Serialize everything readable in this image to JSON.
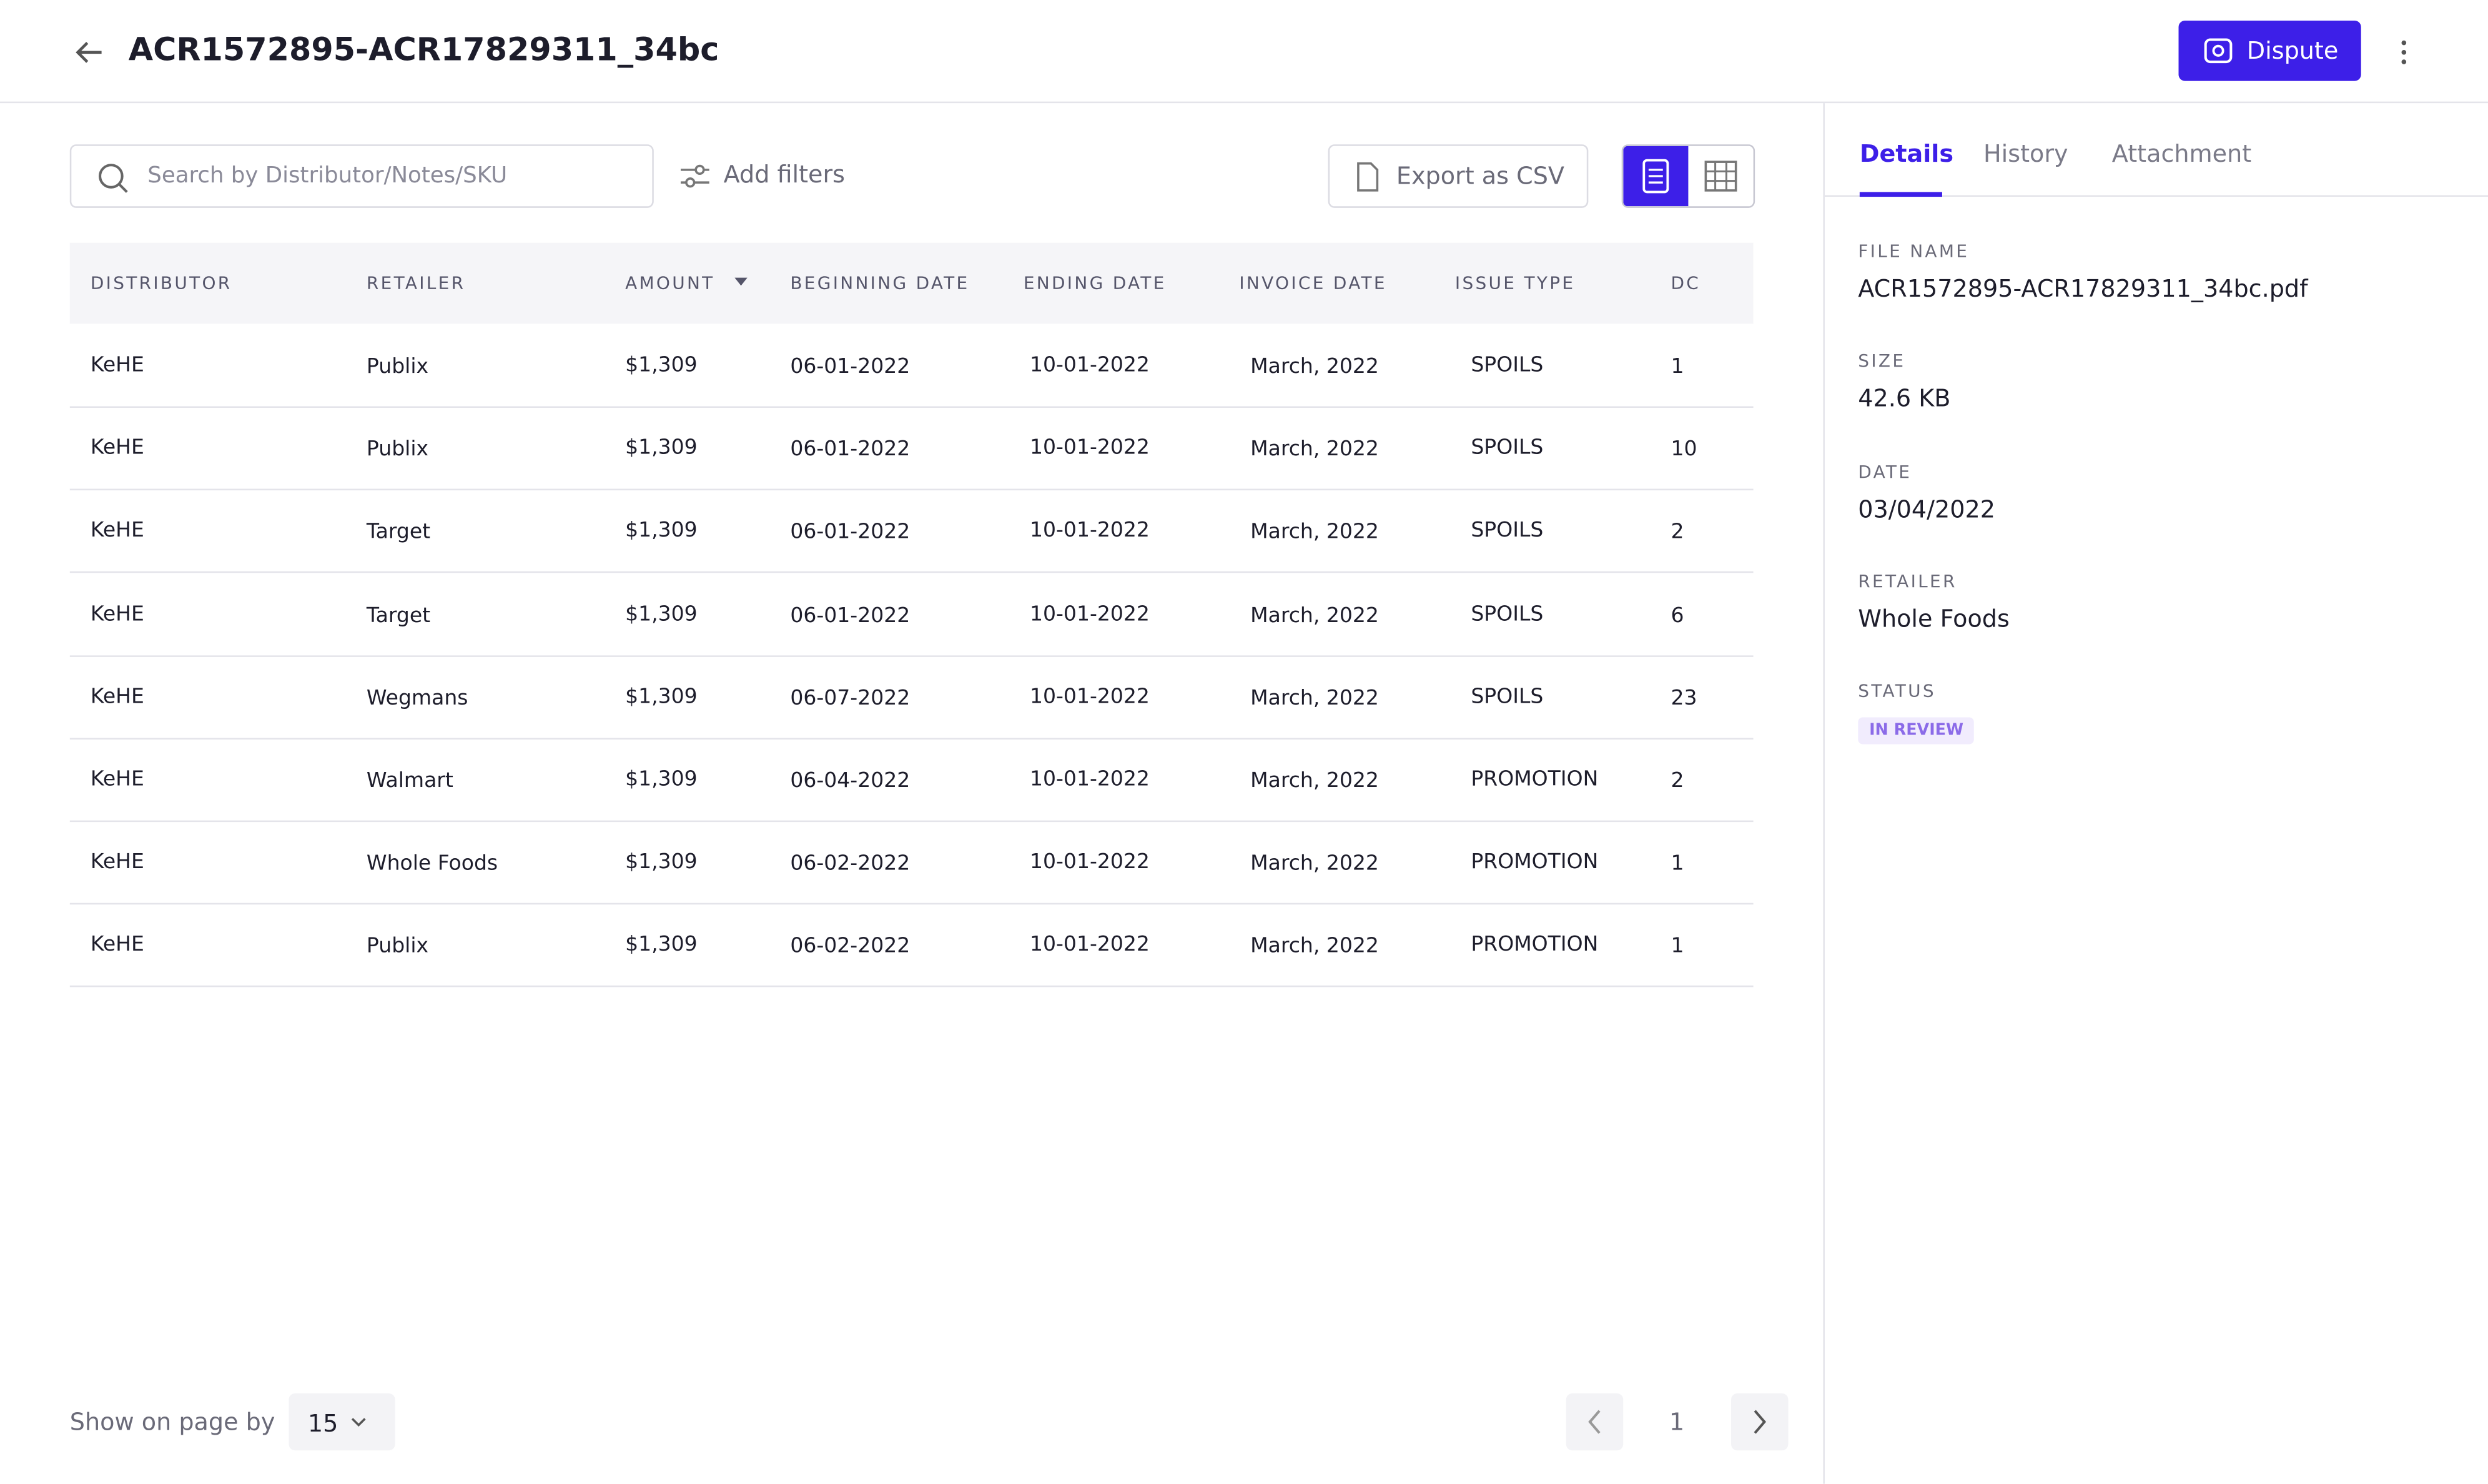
{
  "header": {
    "title": "ACR1572895-ACR17829311_34bc",
    "action": "Dispute"
  },
  "toolbar": {
    "search_placeholder": "Search by Distributor/Notes/SKU",
    "add_filters": "Add filters",
    "export": "Export as CSV"
  },
  "table": {
    "columns": [
      "DISTRIBUTOR",
      "RETAILER",
      "AMOUNT",
      "BEGINNING DATE",
      "ENDING DATE",
      "INVOICE DATE",
      "ISSUE TYPE",
      "DC"
    ],
    "rows": [
      [
        "KeHE",
        "Publix",
        "$1,309",
        "06-01-2022",
        "10-01-2022",
        "March, 2022",
        "SPOILS",
        "1"
      ],
      [
        "KeHE",
        "Publix",
        "$1,309",
        "06-01-2022",
        "10-01-2022",
        "March, 2022",
        "SPOILS",
        "10"
      ],
      [
        "KeHE",
        "Target",
        "$1,309",
        "06-01-2022",
        "10-01-2022",
        "March, 2022",
        "SPOILS",
        "2"
      ],
      [
        "KeHE",
        "Target",
        "$1,309",
        "06-01-2022",
        "10-01-2022",
        "March, 2022",
        "SPOILS",
        "6"
      ],
      [
        "KeHE",
        "Wegmans",
        "$1,309",
        "06-07-2022",
        "10-01-2022",
        "March, 2022",
        "SPOILS",
        "23"
      ],
      [
        "KeHE",
        "Walmart",
        "$1,309",
        "06-04-2022",
        "10-01-2022",
        "March, 2022",
        "PROMOTION",
        "2"
      ],
      [
        "KeHE",
        "Whole Foods",
        "$1,309",
        "06-02-2022",
        "10-01-2022",
        "March, 2022",
        "PROMOTION",
        "1"
      ],
      [
        "KeHE",
        "Publix",
        "$1,309",
        "06-02-2022",
        "10-01-2022",
        "March, 2022",
        "PROMOTION",
        "1"
      ]
    ]
  },
  "pagination": {
    "label": "Show on page by",
    "page_size": "15",
    "page": "1"
  },
  "panel": {
    "tabs": [
      "Details",
      "History",
      "Attachment"
    ],
    "fields": [
      {
        "label": "FILE NAME",
        "value": "ACR1572895-ACR17829311_34bc.pdf"
      },
      {
        "label": "SIZE",
        "value": "42.6 KB"
      },
      {
        "label": "DATE",
        "value": "03/04/2022"
      },
      {
        "label": "RETAILER",
        "value": "Whole Foods"
      }
    ],
    "status_label": "STATUS",
    "status": "IN REVIEW"
  }
}
